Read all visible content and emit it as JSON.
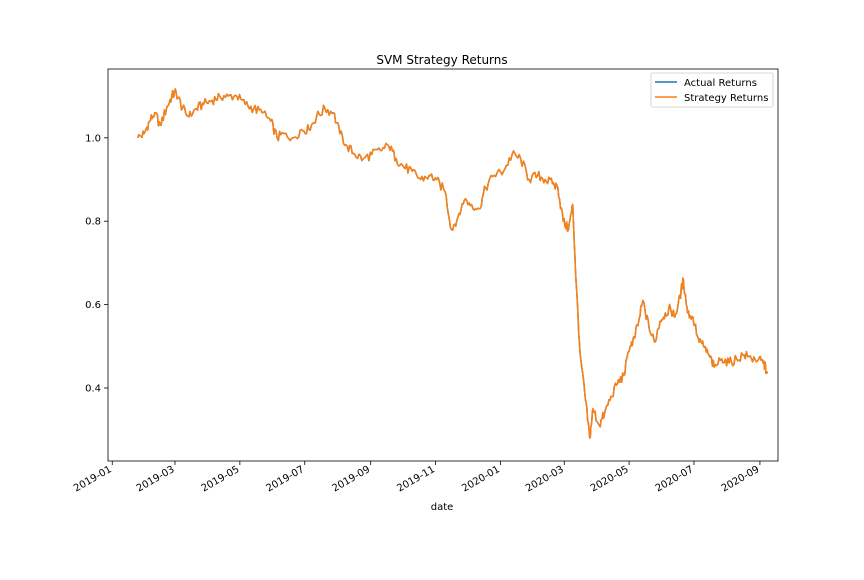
{
  "chart_data": {
    "type": "line",
    "title": "SVM Strategy Returns",
    "xlabel": "date",
    "ylabel": "",
    "x_range": [
      "2018-12-28",
      "2020-09-18"
    ],
    "ylim": [
      0.225,
      1.165
    ],
    "x_ticks": [
      "2019-01",
      "2019-03",
      "2019-05",
      "2019-07",
      "2019-09",
      "2019-11",
      "2020-01",
      "2020-03",
      "2020-05",
      "2020-07",
      "2020-09"
    ],
    "y_ticks": [
      0.4,
      0.6,
      0.8,
      1.0
    ],
    "y_tick_labels": [
      "0.4",
      "0.6",
      "0.8",
      "1.0"
    ],
    "grid": false,
    "legend_position": "top-right",
    "series": [
      {
        "name": "Actual Returns",
        "color": "#1f77b4",
        "points": [
          [
            "2019-01-25",
            1.0
          ],
          [
            "2019-01-31",
            1.01
          ],
          [
            "2019-02-05",
            1.04
          ],
          [
            "2019-02-10",
            1.06
          ],
          [
            "2019-02-15",
            1.03
          ],
          [
            "2019-02-21",
            1.07
          ],
          [
            "2019-02-26",
            1.1
          ],
          [
            "2019-03-02",
            1.11
          ],
          [
            "2019-03-08",
            1.07
          ],
          [
            "2019-03-14",
            1.05
          ],
          [
            "2019-03-21",
            1.07
          ],
          [
            "2019-03-28",
            1.08
          ],
          [
            "2019-04-05",
            1.09
          ],
          [
            "2019-04-12",
            1.1
          ],
          [
            "2019-04-20",
            1.1
          ],
          [
            "2019-04-28",
            1.1
          ],
          [
            "2019-05-06",
            1.08
          ],
          [
            "2019-05-14",
            1.07
          ],
          [
            "2019-05-22",
            1.06
          ],
          [
            "2019-05-30",
            1.04
          ],
          [
            "2019-06-05",
            1.0
          ],
          [
            "2019-06-12",
            1.01
          ],
          [
            "2019-06-20",
            1.0
          ],
          [
            "2019-06-28",
            1.02
          ],
          [
            "2019-07-05",
            1.02
          ],
          [
            "2019-07-12",
            1.05
          ],
          [
            "2019-07-20",
            1.07
          ],
          [
            "2019-07-28",
            1.06
          ],
          [
            "2019-08-03",
            1.01
          ],
          [
            "2019-08-10",
            0.98
          ],
          [
            "2019-08-17",
            0.96
          ],
          [
            "2019-08-25",
            0.95
          ],
          [
            "2019-09-02",
            0.96
          ],
          [
            "2019-09-10",
            0.97
          ],
          [
            "2019-09-18",
            0.98
          ],
          [
            "2019-09-25",
            0.95
          ],
          [
            "2019-10-02",
            0.93
          ],
          [
            "2019-10-10",
            0.92
          ],
          [
            "2019-10-18",
            0.9
          ],
          [
            "2019-10-26",
            0.91
          ],
          [
            "2019-11-02",
            0.9
          ],
          [
            "2019-11-10",
            0.87
          ],
          [
            "2019-11-16",
            0.78
          ],
          [
            "2019-11-22",
            0.81
          ],
          [
            "2019-11-28",
            0.85
          ],
          [
            "2019-12-05",
            0.84
          ],
          [
            "2019-12-12",
            0.83
          ],
          [
            "2019-12-18",
            0.88
          ],
          [
            "2019-12-26",
            0.91
          ],
          [
            "2020-01-04",
            0.92
          ],
          [
            "2020-01-12",
            0.96
          ],
          [
            "2020-01-20",
            0.95
          ],
          [
            "2020-01-28",
            0.9
          ],
          [
            "2020-02-05",
            0.91
          ],
          [
            "2020-02-12",
            0.9
          ],
          [
            "2020-02-19",
            0.89
          ],
          [
            "2020-02-24",
            0.88
          ],
          [
            "2020-02-29",
            0.8
          ],
          [
            "2020-03-05",
            0.78
          ],
          [
            "2020-03-09",
            0.84
          ],
          [
            "2020-03-12",
            0.66
          ],
          [
            "2020-03-16",
            0.48
          ],
          [
            "2020-03-21",
            0.37
          ],
          [
            "2020-03-25",
            0.28
          ],
          [
            "2020-03-28",
            0.35
          ],
          [
            "2020-04-03",
            0.31
          ],
          [
            "2020-04-08",
            0.34
          ],
          [
            "2020-04-14",
            0.38
          ],
          [
            "2020-04-20",
            0.41
          ],
          [
            "2020-04-26",
            0.43
          ],
          [
            "2020-05-02",
            0.5
          ],
          [
            "2020-05-06",
            0.52
          ],
          [
            "2020-05-10",
            0.56
          ],
          [
            "2020-05-14",
            0.61
          ],
          [
            "2020-05-20",
            0.54
          ],
          [
            "2020-05-25",
            0.51
          ],
          [
            "2020-05-30",
            0.56
          ],
          [
            "2020-06-04",
            0.58
          ],
          [
            "2020-06-09",
            0.59
          ],
          [
            "2020-06-13",
            0.57
          ],
          [
            "2020-06-18",
            0.62
          ],
          [
            "2020-06-21",
            0.66
          ],
          [
            "2020-06-25",
            0.58
          ],
          [
            "2020-06-30",
            0.57
          ],
          [
            "2020-07-05",
            0.52
          ],
          [
            "2020-07-10",
            0.5
          ],
          [
            "2020-07-15",
            0.48
          ],
          [
            "2020-07-20",
            0.45
          ],
          [
            "2020-07-27",
            0.47
          ],
          [
            "2020-08-03",
            0.46
          ],
          [
            "2020-08-10",
            0.47
          ],
          [
            "2020-08-17",
            0.48
          ],
          [
            "2020-08-24",
            0.47
          ],
          [
            "2020-08-31",
            0.47
          ],
          [
            "2020-09-04",
            0.46
          ],
          [
            "2020-09-08",
            0.44
          ]
        ]
      },
      {
        "name": "Strategy Returns",
        "color": "#ff7f0e",
        "points": [
          [
            "2019-01-25",
            1.0
          ],
          [
            "2019-01-31",
            1.01
          ],
          [
            "2019-02-05",
            1.04
          ],
          [
            "2019-02-10",
            1.06
          ],
          [
            "2019-02-15",
            1.03
          ],
          [
            "2019-02-21",
            1.07
          ],
          [
            "2019-02-26",
            1.1
          ],
          [
            "2019-03-02",
            1.11
          ],
          [
            "2019-03-08",
            1.07
          ],
          [
            "2019-03-14",
            1.05
          ],
          [
            "2019-03-21",
            1.07
          ],
          [
            "2019-03-28",
            1.08
          ],
          [
            "2019-04-05",
            1.09
          ],
          [
            "2019-04-12",
            1.1
          ],
          [
            "2019-04-20",
            1.1
          ],
          [
            "2019-04-28",
            1.1
          ],
          [
            "2019-05-06",
            1.08
          ],
          [
            "2019-05-14",
            1.07
          ],
          [
            "2019-05-22",
            1.06
          ],
          [
            "2019-05-30",
            1.04
          ],
          [
            "2019-06-05",
            1.0
          ],
          [
            "2019-06-12",
            1.01
          ],
          [
            "2019-06-20",
            1.0
          ],
          [
            "2019-06-28",
            1.02
          ],
          [
            "2019-07-05",
            1.02
          ],
          [
            "2019-07-12",
            1.05
          ],
          [
            "2019-07-20",
            1.07
          ],
          [
            "2019-07-28",
            1.06
          ],
          [
            "2019-08-03",
            1.01
          ],
          [
            "2019-08-10",
            0.98
          ],
          [
            "2019-08-17",
            0.96
          ],
          [
            "2019-08-25",
            0.95
          ],
          [
            "2019-09-02",
            0.96
          ],
          [
            "2019-09-10",
            0.97
          ],
          [
            "2019-09-18",
            0.98
          ],
          [
            "2019-09-25",
            0.95
          ],
          [
            "2019-10-02",
            0.93
          ],
          [
            "2019-10-10",
            0.92
          ],
          [
            "2019-10-18",
            0.9
          ],
          [
            "2019-10-26",
            0.91
          ],
          [
            "2019-11-02",
            0.9
          ],
          [
            "2019-11-10",
            0.87
          ],
          [
            "2019-11-16",
            0.78
          ],
          [
            "2019-11-22",
            0.81
          ],
          [
            "2019-11-28",
            0.85
          ],
          [
            "2019-12-05",
            0.84
          ],
          [
            "2019-12-12",
            0.83
          ],
          [
            "2019-12-18",
            0.88
          ],
          [
            "2019-12-26",
            0.91
          ],
          [
            "2020-01-04",
            0.92
          ],
          [
            "2020-01-12",
            0.96
          ],
          [
            "2020-01-20",
            0.95
          ],
          [
            "2020-01-28",
            0.9
          ],
          [
            "2020-02-05",
            0.91
          ],
          [
            "2020-02-12",
            0.9
          ],
          [
            "2020-02-19",
            0.89
          ],
          [
            "2020-02-24",
            0.88
          ],
          [
            "2020-02-29",
            0.8
          ],
          [
            "2020-03-05",
            0.78
          ],
          [
            "2020-03-09",
            0.84
          ],
          [
            "2020-03-12",
            0.66
          ],
          [
            "2020-03-16",
            0.48
          ],
          [
            "2020-03-21",
            0.37
          ],
          [
            "2020-03-25",
            0.28
          ],
          [
            "2020-03-28",
            0.35
          ],
          [
            "2020-04-03",
            0.31
          ],
          [
            "2020-04-08",
            0.34
          ],
          [
            "2020-04-14",
            0.38
          ],
          [
            "2020-04-20",
            0.41
          ],
          [
            "2020-04-26",
            0.43
          ],
          [
            "2020-05-02",
            0.5
          ],
          [
            "2020-05-06",
            0.52
          ],
          [
            "2020-05-10",
            0.56
          ],
          [
            "2020-05-14",
            0.61
          ],
          [
            "2020-05-20",
            0.54
          ],
          [
            "2020-05-25",
            0.51
          ],
          [
            "2020-05-30",
            0.56
          ],
          [
            "2020-06-04",
            0.58
          ],
          [
            "2020-06-09",
            0.59
          ],
          [
            "2020-06-13",
            0.57
          ],
          [
            "2020-06-18",
            0.62
          ],
          [
            "2020-06-21",
            0.66
          ],
          [
            "2020-06-25",
            0.58
          ],
          [
            "2020-06-30",
            0.57
          ],
          [
            "2020-07-05",
            0.52
          ],
          [
            "2020-07-10",
            0.5
          ],
          [
            "2020-07-15",
            0.48
          ],
          [
            "2020-07-20",
            0.45
          ],
          [
            "2020-07-27",
            0.47
          ],
          [
            "2020-08-03",
            0.46
          ],
          [
            "2020-08-10",
            0.47
          ],
          [
            "2020-08-17",
            0.48
          ],
          [
            "2020-08-24",
            0.47
          ],
          [
            "2020-08-31",
            0.47
          ],
          [
            "2020-09-04",
            0.46
          ],
          [
            "2020-09-08",
            0.44
          ]
        ]
      }
    ]
  }
}
